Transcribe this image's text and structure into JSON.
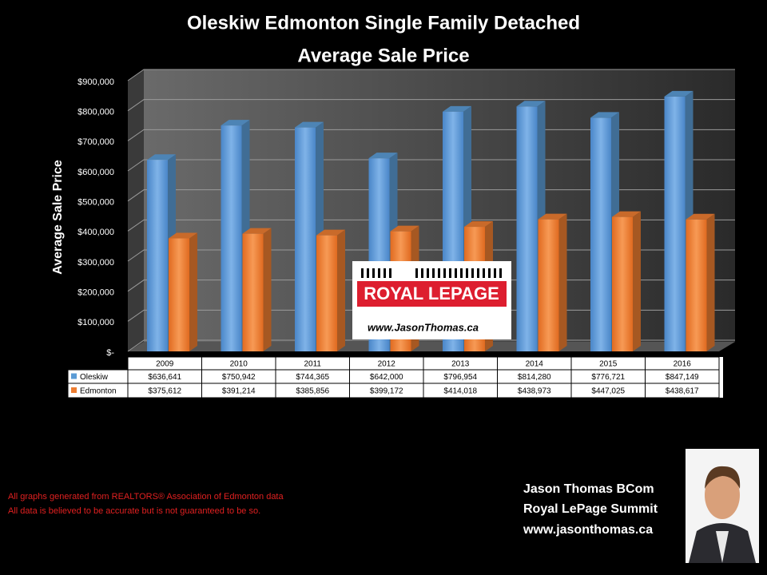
{
  "chart_data": {
    "type": "bar",
    "title": "Oleskiw Edmonton Single Family Detached",
    "subtitle": "Average Sale Price",
    "y_label": "Average Sale Price",
    "categories": [
      "2009",
      "2010",
      "2011",
      "2012",
      "2013",
      "2014",
      "2015",
      "2016"
    ],
    "series": [
      {
        "name": "Oleskiw",
        "color": "#5b9bd5",
        "values": [
          636641,
          750942,
          744365,
          642000,
          796954,
          814280,
          776721,
          847149
        ],
        "value_labels": [
          "$636,641",
          "$750,942",
          "$744,365",
          "$642,000",
          "$796,954",
          "$814,280",
          "$776,721",
          "$847,149"
        ]
      },
      {
        "name": "Edmonton",
        "color": "#ed7d31",
        "values": [
          375612,
          391214,
          385856,
          399172,
          414018,
          438973,
          447025,
          438617
        ],
        "value_labels": [
          "$375,612",
          "$391,214",
          "$385,856",
          "$399,172",
          "$414,018",
          "$438,973",
          "$447,025",
          "$438,617"
        ]
      }
    ],
    "ylim": [
      0,
      900000
    ],
    "yticks": [
      {
        "value": 0,
        "label": "$-"
      },
      {
        "value": 100000,
        "label": "$100,000"
      },
      {
        "value": 200000,
        "label": "$200,000"
      },
      {
        "value": 300000,
        "label": "$300,000"
      },
      {
        "value": 400000,
        "label": "$400,000"
      },
      {
        "value": 500000,
        "label": "$500,000"
      },
      {
        "value": 600000,
        "label": "$600,000"
      },
      {
        "value": 700000,
        "label": "$700,000"
      },
      {
        "value": 800000,
        "label": "$800,000"
      },
      {
        "value": 900000,
        "label": "$900,000"
      }
    ],
    "grid": true
  },
  "logo": {
    "brand": "ROYAL LEPAGE",
    "url": "www.JasonThomas.ca"
  },
  "footer": {
    "notes": [
      "All graphs generated from REALTORS® Association of Edmonton data",
      "All data is believed to be accurate but is not guaranteed to be so."
    ],
    "contact": [
      "Jason Thomas BCom",
      "Royal LePage Summit",
      "www.jasonthomas.ca"
    ]
  }
}
